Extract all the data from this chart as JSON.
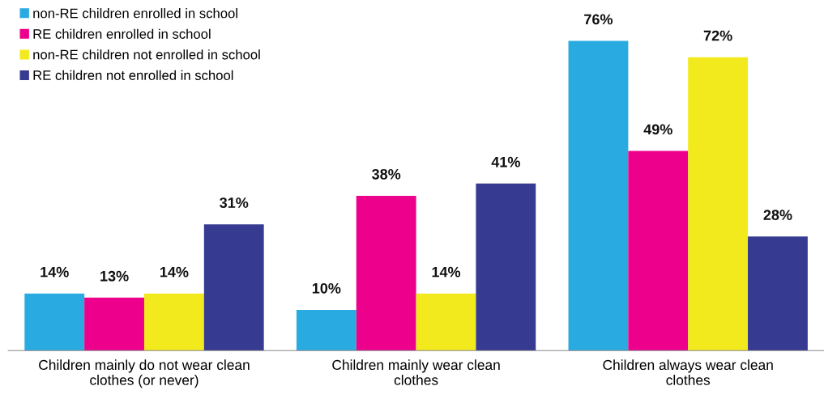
{
  "chart_data": {
    "type": "bar",
    "categories": [
      "Children mainly do not wear clean\nclothes (or never)",
      "Children mainly wear clean\nclothes",
      "Children always wear clean\nclothes"
    ],
    "series": [
      {
        "name": "non-RE children enrolled in school",
        "color": "#29abe2",
        "values": [
          14,
          10,
          76
        ],
        "value_labels": [
          "14%",
          "10%",
          "76%"
        ]
      },
      {
        "name": "RE children enrolled in school",
        "color": "#ec008c",
        "values": [
          13,
          38,
          49
        ],
        "value_labels": [
          "13%",
          "38%",
          "49%"
        ]
      },
      {
        "name": "non-RE children not enrolled in school",
        "color": "#f2ea1c",
        "values": [
          14,
          14,
          72
        ],
        "value_labels": [
          "14%",
          "14%",
          "72%"
        ]
      },
      {
        "name": "RE children not enrolled in school",
        "color": "#363a91",
        "values": [
          31,
          41,
          28
        ],
        "value_labels": [
          "31%",
          "41%",
          "28%"
        ]
      }
    ],
    "legend": "top left",
    "grid": false,
    "tick_labels": "x"
  }
}
